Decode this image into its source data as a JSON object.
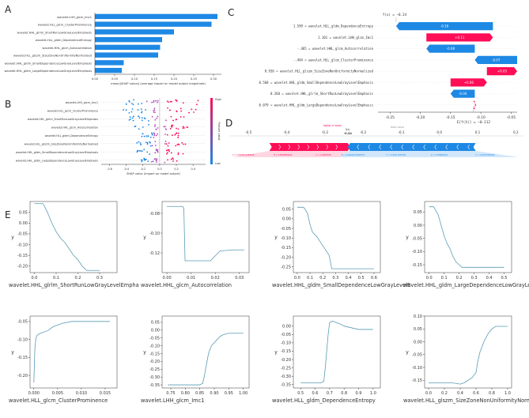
{
  "colors": {
    "blue": "#1e88e5",
    "red": "#ff0d57",
    "line": "#5a9cb5",
    "axis": "#333333",
    "grey": "#999999"
  },
  "chart_data": [
    {
      "panel": "A",
      "type": "bar",
      "orientation": "horizontal",
      "categories": [
        "wavelet.LHH_glcm_Imc1",
        "wavelet.HLL_glcm_ClusterProminence",
        "wavelet.HHL_glrlm_ShortRunLowGrayLevelEmphasis",
        "wavelet.HLL_gldm_DependenceEntropy",
        "wavelet.HHL_glcm_Autocorrelation",
        "wavelet.HLL_glszm_SizeZoneNonUniformityNormalized",
        "wavelet.HHL_gldm_SmallDependenceLowGrayLevelEmphasis",
        "wavelet.HHL_gldm_LargeDependenceLowGrayLevelEmphasis"
      ],
      "values": [
        0.31,
        0.295,
        0.2,
        0.17,
        0.165,
        0.16,
        0.073,
        0.068
      ],
      "xlim": [
        0,
        0.32
      ],
      "xticks": [
        "0.00",
        "0.05",
        "0.10",
        "0.15",
        "0.20",
        "0.25",
        "0.30"
      ],
      "xlabel": "mean(|SHAP value|) (average impact on model output magnitude)"
    },
    {
      "panel": "B",
      "type": "scatter",
      "subtype": "shap-beeswarm",
      "categories": [
        "wavelet.LHH_glcm_Imc1",
        "wavelet.HLL_glcm_ClusterProminence",
        "wavelet.HHL_glrlm_ShortRunLowGrayLevelEmphasis",
        "wavelet.HHL_glcm_Autocorrelation",
        "wavelet.HLL_gldm_DependenceEntropy",
        "wavelet.HLL_glszm_SizeZoneNonUniformityNormalized",
        "wavelet.HHL_gldm_SmallDependenceLowGrayLevelEmphasis",
        "wavelet.HHL_gldm_LargeDependenceLowGrayLevelEmphasis"
      ],
      "xlim": [
        -0.7,
        0.55
      ],
      "xticks": [
        "-0.6",
        "-0.4",
        "-0.2",
        "0.0",
        "0.2",
        "0.4"
      ],
      "xlabel": "SHAP value (impact on model output)",
      "colorbar_label": "Feature value",
      "colorbar_high": "High",
      "colorbar_low": "Low"
    },
    {
      "panel": "C",
      "type": "bar",
      "subtype": "shap-waterfall",
      "fx_label": "f(x) = −0.24",
      "efx_label": "E[f(X)] = −0.112",
      "features": [
        {
          "label": "1.599 = wavelet.HLL_gldm_DependenceEntropy",
          "value": -0.16
        },
        {
          "label": "1.101 = wavelet.LHH_glcm_Imc1",
          "value": 0.11
        },
        {
          "label": "-.465 = wavelet.HHL_glcm_Autocorrelation",
          "value": -0.08
        },
        {
          "label": "-.494 = wavelet.HLL_glcm_ClusterProminence",
          "value": -0.07
        },
        {
          "label": "0.936 = wavelet.HLL_glszm_SizeZoneNonUniformityNormalized",
          "value": 0.05
        },
        {
          "label": "0.560 = wavelet.HHL_gldm_SmallDependenceLowGrayLevelEmphasis",
          "value": 0.06
        },
        {
          "label": "0.260 = wavelet.HHL_glrlm_ShortRunLowGrayLevelEmphasis",
          "value": -0.04
        },
        {
          "label": "0.079 = wavelet.HHL_gldm_LargeDependenceLowGrayLevelEmphasis",
          "value": 0.0
        }
      ],
      "value_labels": [
        "-0.16",
        "+0.11",
        "-0.08",
        "-0.07",
        "+0.05",
        "+0.06",
        "-0.04",
        "0"
      ],
      "xlim": [
        -0.27,
        -0.04
      ],
      "xticks": [
        "-0.25",
        "-0.20",
        "-0.15",
        "-0.10",
        "-0.05"
      ]
    },
    {
      "panel": "D",
      "type": "bar",
      "subtype": "shap-force",
      "axis_ticks": [
        "-0.5",
        "-0.4",
        "-0.3",
        "-0.2",
        "-0.1",
        "0.0",
        "0.1",
        "0.2"
      ],
      "higher_label": "higher ⇄ lower",
      "base_label": "base value",
      "fx_label": "f(x)",
      "fx_value": "-0.24",
      "xlim": [
        -0.55,
        0.22
      ],
      "fx": -0.24,
      "red_span": [
        -0.445,
        -0.24
      ],
      "blue_span": [
        -0.24,
        0.095
      ],
      "red_segments": [
        "C = 0.5608014789506",
        "B = 0.5878554244",
        "A = 1.10063052"
      ],
      "blue_segments": [
        "E = -0.46441043026547",
        "F = -0.49717643756",
        "G = 0.359893922",
        "H = 0.26037069954"
      ]
    },
    {
      "panel": "E",
      "type": "line",
      "subtype": "partial-dependence",
      "subplots": [
        {
          "xlabel": "wavelet.HHL_glrlm_ShortRunLowGrayLevelEmpha",
          "xticks": [
            "0.0",
            "0.1",
            "0.2",
            "0.3"
          ],
          "yticks": [
            "0.05",
            "0.00",
            "-0.05",
            "-0.10",
            "-0.15",
            "-0.20"
          ],
          "xlim": [
            -0.02,
            0.38
          ],
          "ylim": [
            -0.23,
            0.1
          ],
          "x": [
            0.0,
            0.04,
            0.06,
            0.08,
            0.1,
            0.12,
            0.14,
            0.16,
            0.18,
            0.2,
            0.22,
            0.24,
            0.25,
            0.27,
            0.3
          ],
          "y": [
            0.09,
            0.09,
            0.05,
            0.0,
            -0.04,
            -0.07,
            -0.09,
            -0.12,
            -0.15,
            -0.17,
            -0.2,
            -0.22,
            -0.22,
            -0.22,
            -0.22
          ]
        },
        {
          "xlabel": "wavelet.HHL_glcm_Autocorrelation",
          "xticks": [
            "0.00",
            "0.01",
            "0.02",
            "0.03"
          ],
          "yticks": [
            "-0.08",
            "-0.10",
            "-0.12"
          ],
          "xlim": [
            -0.002,
            0.034
          ],
          "ylim": [
            -0.14,
            -0.068
          ],
          "x": [
            0.0,
            0.005,
            0.0065,
            0.007,
            0.0075,
            0.008,
            0.012,
            0.018,
            0.022,
            0.028,
            0.032
          ],
          "y": [
            -0.073,
            -0.073,
            -0.073,
            -0.075,
            -0.128,
            -0.128,
            -0.128,
            -0.128,
            -0.118,
            -0.117,
            -0.117
          ]
        },
        {
          "xlabel": "wavelet.HHL_gldm_SmallDependenceLowGrayLevelE",
          "xticks": [
            "0.0",
            "0.1",
            "0.2",
            "0.3",
            "0.4",
            "0.5",
            "0.6"
          ],
          "yticks": [
            "0.05",
            "0.00",
            "-0.05",
            "-0.10",
            "-0.15",
            "-0.20",
            "-0.25"
          ],
          "xlim": [
            -0.03,
            0.65
          ],
          "ylim": [
            -0.28,
            0.09
          ],
          "x": [
            0.0,
            0.05,
            0.08,
            0.1,
            0.12,
            0.15,
            0.18,
            0.2,
            0.22,
            0.25,
            0.27,
            0.3,
            0.35,
            0.45,
            0.55,
            0.6
          ],
          "y": [
            0.06,
            0.06,
            0.03,
            -0.03,
            -0.07,
            -0.09,
            -0.12,
            -0.14,
            -0.16,
            -0.19,
            -0.26,
            -0.26,
            -0.26,
            -0.26,
            -0.26,
            -0.26
          ]
        },
        {
          "xlabel": "wavelet.HHL_gldm_LargeDependenceLowGrayLevelE",
          "xticks": [
            "0.0",
            "0.1",
            "0.2",
            "0.3",
            "0.4",
            "0.5"
          ],
          "yticks": [
            "0.05",
            "0.00",
            "-0.05",
            "-0.10",
            "-0.15"
          ],
          "xlim": [
            -0.03,
            0.55
          ],
          "ylim": [
            -0.18,
            0.09
          ],
          "x": [
            0.0,
            0.03,
            0.06,
            0.08,
            0.1,
            0.12,
            0.14,
            0.16,
            0.18,
            0.2,
            0.22,
            0.25,
            0.3,
            0.4,
            0.5
          ],
          "y": [
            0.07,
            0.07,
            0.04,
            0.0,
            -0.04,
            -0.07,
            -0.09,
            -0.12,
            -0.14,
            -0.15,
            -0.16,
            -0.16,
            -0.16,
            -0.16,
            -0.16
          ]
        },
        {
          "xlabel": "wavelet.HLL_glcm_ClusterProminence",
          "xticks": [
            "0.000",
            "0.005",
            "0.010",
            "0.015"
          ],
          "yticks": [
            "-0.05",
            "-0.10",
            "-0.15",
            "-0.20"
          ],
          "xlim": [
            -0.0008,
            0.0175
          ],
          "ylim": [
            -0.235,
            -0.035
          ],
          "x": [
            0.0,
            0.0002,
            0.0004,
            0.0006,
            0.001,
            0.002,
            0.003,
            0.004,
            0.005,
            0.006,
            0.008,
            0.01,
            0.012,
            0.016
          ],
          "y": [
            -0.22,
            -0.13,
            -0.1,
            -0.09,
            -0.085,
            -0.08,
            -0.075,
            -0.065,
            -0.06,
            -0.055,
            -0.05,
            -0.05,
            -0.05,
            -0.05
          ]
        },
        {
          "xlabel": "wavelet.LHH_glcm_Imc1",
          "xticks": [
            "0.75",
            "0.80",
            "0.85",
            "0.90",
            "0.95",
            "1.00"
          ],
          "yticks": [
            "0.05",
            "0.00",
            "-0.05",
            "-0.10",
            "-0.15",
            "-0.20",
            "-0.25",
            "-0.30",
            "-0.35"
          ],
          "xlim": [
            0.72,
            1.02
          ],
          "ylim": [
            -0.37,
            0.09
          ],
          "x": [
            0.74,
            0.78,
            0.82,
            0.85,
            0.86,
            0.865,
            0.87,
            0.875,
            0.88,
            0.89,
            0.9,
            0.91,
            0.92,
            0.93,
            0.95,
            0.97,
            1.0
          ],
          "y": [
            -0.35,
            -0.35,
            -0.35,
            -0.35,
            -0.34,
            -0.3,
            -0.25,
            -0.2,
            -0.15,
            -0.1,
            -0.08,
            -0.06,
            -0.04,
            -0.03,
            -0.02,
            -0.02,
            -0.02
          ]
        },
        {
          "xlabel": "wavelet.HLL_gldm_DependenceEntropy",
          "xticks": [
            "0.5",
            "0.6",
            "0.7",
            "0.8",
            "0.9",
            "1.0"
          ],
          "yticks": [
            "0.00",
            "-0.05",
            "-0.10",
            "-0.15",
            "-0.20",
            "-0.25",
            "-0.30",
            "-0.35"
          ],
          "xlim": [
            0.45,
            1.05
          ],
          "ylim": [
            -0.37,
            0.06
          ],
          "x": [
            0.5,
            0.55,
            0.6,
            0.64,
            0.66,
            0.67,
            0.68,
            0.69,
            0.7,
            0.72,
            0.75,
            0.78,
            0.8,
            0.85,
            0.9,
            0.95,
            1.0
          ],
          "y": [
            -0.34,
            -0.34,
            -0.34,
            -0.34,
            -0.33,
            -0.25,
            -0.15,
            -0.05,
            0.02,
            0.03,
            0.02,
            0.01,
            0.0,
            -0.01,
            -0.02,
            -0.02,
            -0.02
          ]
        },
        {
          "xlabel": "wavelet.HLL_glszm_SizeZoneNonUniformityNorma",
          "xticks": [
            "0.0",
            "0.2",
            "0.4",
            "0.6",
            "0.8",
            "1.0"
          ],
          "yticks": [
            "0.10",
            "0.05",
            "0.00",
            "-0.05",
            "-0.10",
            "-0.15"
          ],
          "xlim": [
            -0.05,
            1.05
          ],
          "ylim": [
            -0.18,
            0.1
          ],
          "x": [
            0.0,
            0.1,
            0.2,
            0.3,
            0.4,
            0.45,
            0.5,
            0.55,
            0.6,
            0.62,
            0.65,
            0.7,
            0.75,
            0.8,
            0.85,
            0.9,
            0.95,
            1.0
          ],
          "y": [
            -0.16,
            -0.16,
            -0.16,
            -0.16,
            -0.165,
            -0.16,
            -0.15,
            -0.14,
            -0.12,
            -0.08,
            -0.04,
            0.0,
            0.03,
            0.05,
            0.06,
            0.06,
            0.06,
            0.06
          ]
        }
      ],
      "ylabel": "y"
    }
  ]
}
